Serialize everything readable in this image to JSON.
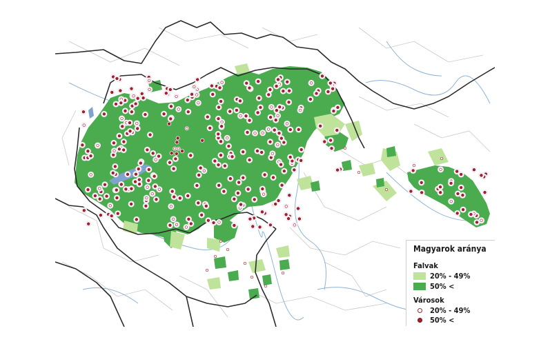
{
  "legend": {
    "title": "Magyarok aránya",
    "villages_heading": "Falvak",
    "villages": [
      {
        "label": "20% - 49%",
        "color": "#bfe39a"
      },
      {
        "label": "50% <",
        "color": "#4aab4f"
      }
    ],
    "towns_heading": "Városok",
    "towns": [
      {
        "label": "20% - 49%",
        "fill": "#ffffff",
        "stroke": "#b01e2a"
      },
      {
        "label": "50% <",
        "fill": "#b01e2a",
        "stroke": "#7a0d16"
      }
    ]
  },
  "colors": {
    "border": "#2b2b2b",
    "subdivision": "#c8c8c8",
    "water": "#8db3d6",
    "lake": "#7fa3cc"
  }
}
